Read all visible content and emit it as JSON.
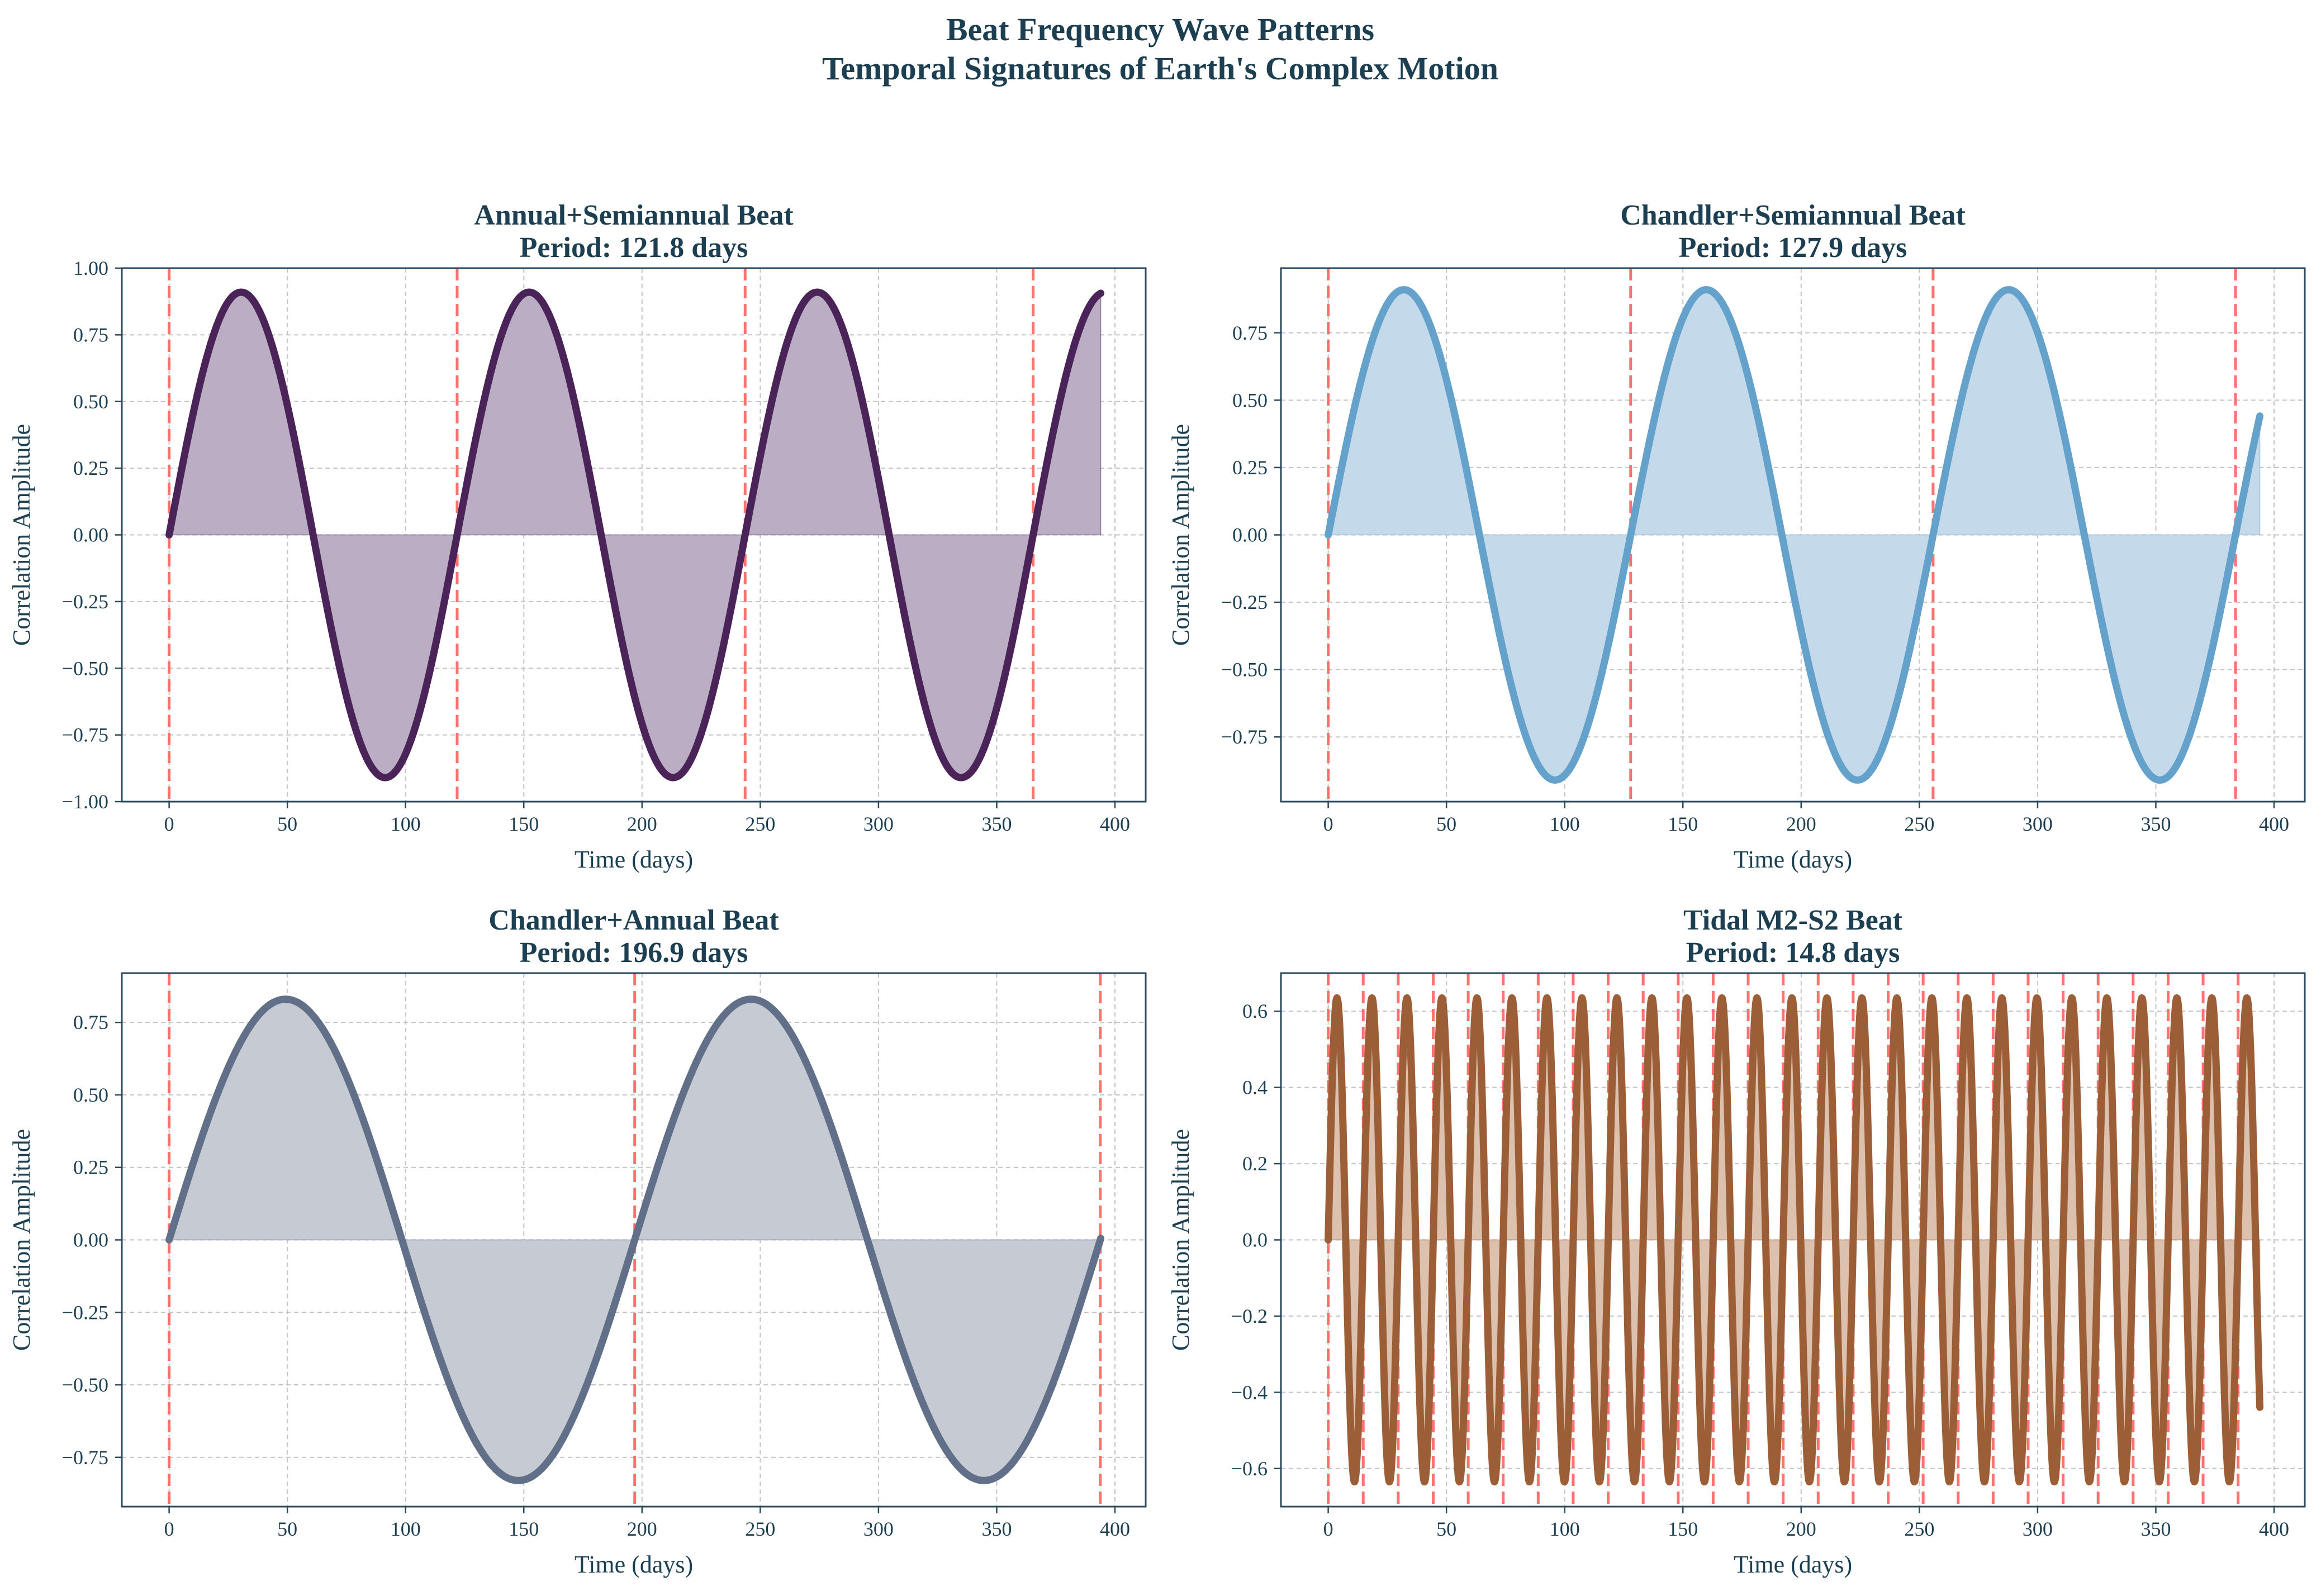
{
  "figure": {
    "title_line1": "Beat Frequency Wave Patterns",
    "title_line2": "Temporal Signatures of Earth's Complex Motion",
    "marker_color": "#ff5a5a",
    "text_color": "#1c3f52"
  },
  "chart_data": [
    {
      "type": "line",
      "title_line1": "Annual+Semiannual Beat",
      "title_line2": "Period: 121.8 days",
      "xlabel": "Time (days)",
      "ylabel": "Correlation Amplitude",
      "period_days": 121.8,
      "amplitude": 0.91,
      "x_range": [
        0,
        394
      ],
      "xlim": [
        -20,
        413
      ],
      "ylim": [
        -1.0,
        1.0
      ],
      "xticks": [
        0,
        50,
        100,
        150,
        200,
        250,
        300,
        350,
        400
      ],
      "xtick_labels": [
        "0",
        "50",
        "100",
        "150",
        "200",
        "250",
        "300",
        "350",
        "400"
      ],
      "yticks": [
        -1.0,
        -0.75,
        -0.5,
        -0.25,
        0.0,
        0.25,
        0.5,
        0.75,
        1.0
      ],
      "ytick_labels": [
        "−1.00",
        "−0.75",
        "−0.50",
        "−0.25",
        "0.00",
        "0.25",
        "0.50",
        "0.75",
        "1.00"
      ],
      "beat_markers": [
        0,
        121.8,
        243.6,
        365.4
      ],
      "grid": true,
      "line_color": "#4a2358",
      "fill_color": "#bbaec4"
    },
    {
      "type": "line",
      "title_line1": "Chandler+Semiannual Beat",
      "title_line2": "Period: 127.9 days",
      "xlabel": "Time (days)",
      "ylabel": "Correlation Amplitude",
      "period_days": 127.9,
      "amplitude": 0.91,
      "x_range": [
        0,
        394
      ],
      "xlim": [
        -20,
        413
      ],
      "ylim": [
        -0.99,
        0.99
      ],
      "xticks": [
        0,
        50,
        100,
        150,
        200,
        250,
        300,
        350,
        400
      ],
      "xtick_labels": [
        "0",
        "50",
        "100",
        "150",
        "200",
        "250",
        "300",
        "350",
        "400"
      ],
      "yticks": [
        -0.75,
        -0.5,
        -0.25,
        0.0,
        0.25,
        0.5,
        0.75
      ],
      "ytick_labels": [
        "−0.75",
        "−0.50",
        "−0.25",
        "0.00",
        "0.25",
        "0.50",
        "0.75"
      ],
      "beat_markers": [
        0,
        127.9,
        255.8,
        383.7
      ],
      "grid": true,
      "line_color": "#64a1cb",
      "fill_color": "#c4daea"
    },
    {
      "type": "line",
      "title_line1": "Chandler+Annual Beat",
      "title_line2": "Period: 196.9 days",
      "xlabel": "Time (days)",
      "ylabel": "Correlation Amplitude",
      "period_days": 196.9,
      "amplitude": 0.83,
      "x_range": [
        0,
        394
      ],
      "xlim": [
        -20,
        413
      ],
      "ylim": [
        -0.92,
        0.92
      ],
      "xticks": [
        0,
        50,
        100,
        150,
        200,
        250,
        300,
        350,
        400
      ],
      "xtick_labels": [
        "0",
        "50",
        "100",
        "150",
        "200",
        "250",
        "300",
        "350",
        "400"
      ],
      "yticks": [
        -0.75,
        -0.5,
        -0.25,
        0.0,
        0.25,
        0.5,
        0.75
      ],
      "ytick_labels": [
        "−0.75",
        "−0.50",
        "−0.25",
        "0.00",
        "0.25",
        "0.50",
        "0.75"
      ],
      "beat_markers": [
        0,
        196.9,
        393.8
      ],
      "grid": true,
      "line_color": "#626f88",
      "fill_color": "#c6cbd3"
    },
    {
      "type": "line",
      "title_line1": "Tidal M2-S2 Beat",
      "title_line2": "Period: 14.8 days",
      "xlabel": "Time (days)",
      "ylabel": "Correlation Amplitude",
      "period_days": 14.8,
      "amplitude": 0.635,
      "x_range": [
        0,
        394
      ],
      "xlim": [
        -20,
        413
      ],
      "ylim": [
        -0.7,
        0.7
      ],
      "xticks": [
        0,
        50,
        100,
        150,
        200,
        250,
        300,
        350,
        400
      ],
      "xtick_labels": [
        "0",
        "50",
        "100",
        "150",
        "200",
        "250",
        "300",
        "350",
        "400"
      ],
      "yticks": [
        -0.6,
        -0.4,
        -0.2,
        0.0,
        0.2,
        0.4,
        0.6
      ],
      "ytick_labels": [
        "−0.6",
        "−0.4",
        "−0.2",
        "0.0",
        "0.2",
        "0.4",
        "0.6"
      ],
      "beat_markers": [
        0,
        14.8,
        29.6,
        44.4,
        59.2,
        74.0,
        88.8,
        103.6,
        118.4,
        133.2,
        148.0,
        162.8,
        177.6,
        192.4,
        207.2,
        222.0,
        236.8,
        251.6,
        266.4,
        281.2,
        296.0,
        310.8,
        325.6,
        340.4,
        355.2,
        370.0,
        384.8
      ],
      "grid": true,
      "line_color": "#9c5e36",
      "fill_color": "#dcc1ae"
    }
  ]
}
